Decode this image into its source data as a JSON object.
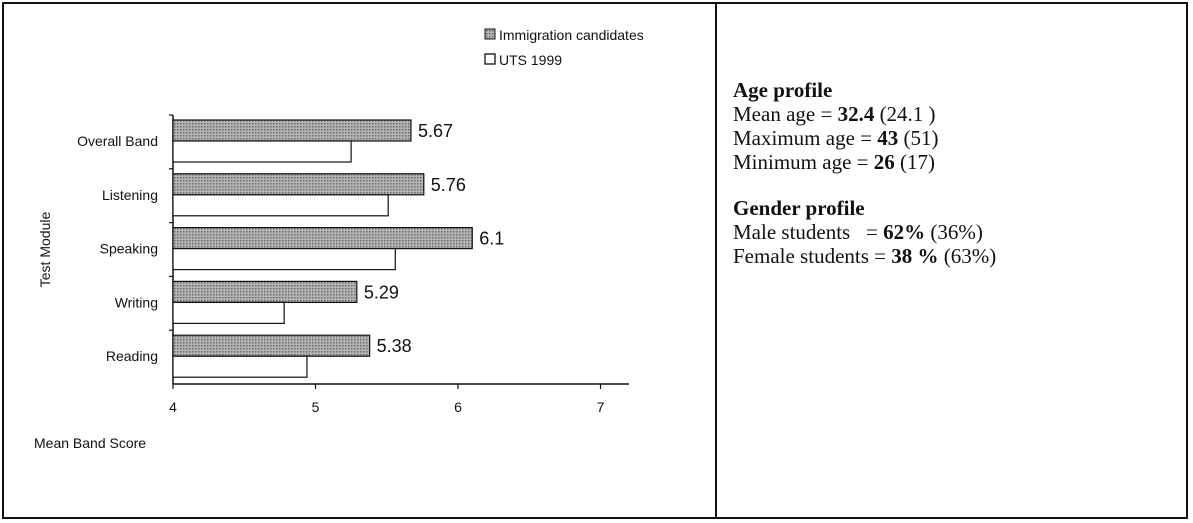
{
  "chart_data": {
    "type": "bar",
    "orientation": "horizontal",
    "categories": [
      "Overall Band",
      "Listening",
      "Speaking",
      "Writing",
      "Reading"
    ],
    "series": [
      {
        "name": "Immigration candidates",
        "values": [
          5.67,
          5.76,
          6.1,
          5.29,
          5.38
        ],
        "color": "#9a9a9a",
        "pattern": "dotted"
      },
      {
        "name": "UTS 1999",
        "values": [
          5.25,
          5.51,
          5.56,
          4.78,
          4.94
        ],
        "color": "#ffffff"
      }
    ],
    "data_labels": [
      "5.67",
      "5.76",
      "6.1",
      "5.29",
      "5.38"
    ],
    "xlabel": "Mean Band Score",
    "ylabel": "Test Module",
    "xlim": [
      4,
      7.2
    ],
    "xticks": [
      "4",
      "5",
      "6",
      "7"
    ],
    "legend_placement": "top-right",
    "grid": false
  },
  "age_profile": {
    "heading": "Age profile",
    "rows": [
      {
        "label": "Mean age = ",
        "value": "32.4",
        "comparison": " (24.1 )"
      },
      {
        "label": "Maximum age = ",
        "value": "43",
        "comparison": " (51)"
      },
      {
        "label": "Minimum age = ",
        "value": "26",
        "comparison": " (17)"
      }
    ]
  },
  "gender_profile": {
    "heading": "Gender profile",
    "rows": [
      {
        "label": "Male students   = ",
        "value": "62%",
        "comparison": " (36%)"
      },
      {
        "label": "Female students = ",
        "value": "38 %",
        "comparison": " (63%)"
      }
    ]
  }
}
